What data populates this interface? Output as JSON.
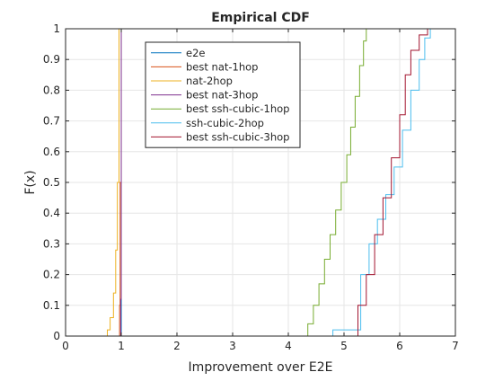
{
  "chart_data": {
    "type": "line",
    "title": "Empirical CDF",
    "xlabel": "Improvement over E2E",
    "ylabel": "F(x)",
    "xlim": [
      0,
      7
    ],
    "ylim": [
      0,
      1
    ],
    "xticks": [
      "0",
      "1",
      "2",
      "3",
      "4",
      "5",
      "6",
      "7"
    ],
    "yticks": [
      "0",
      "0.1",
      "0.2",
      "0.3",
      "0.4",
      "0.5",
      "0.6",
      "0.7",
      "0.8",
      "0.9",
      "1"
    ],
    "grid": true,
    "legend": "top-left-inside",
    "series": [
      {
        "name": "e2e",
        "color": "#0072bd",
        "x": [
          -0.1,
          1.0,
          1.0,
          7.1
        ],
        "y": [
          0,
          0,
          1,
          1
        ]
      },
      {
        "name": "best nat-1hop",
        "color": "#d95319",
        "x": [
          -0.1,
          0.97,
          0.97,
          0.98,
          0.98,
          1.0,
          1.0,
          7.1
        ],
        "y": [
          0,
          0,
          0.1,
          0.1,
          0.5,
          0.5,
          1,
          1
        ]
      },
      {
        "name": "nat-2hop",
        "color": "#edb120",
        "x": [
          -0.1,
          0.75,
          0.75,
          0.8,
          0.8,
          0.86,
          0.86,
          0.9,
          0.9,
          0.93,
          0.93,
          0.96,
          0.96,
          7.1
        ],
        "y": [
          0,
          0,
          0.02,
          0.02,
          0.06,
          0.06,
          0.14,
          0.14,
          0.28,
          0.28,
          0.5,
          0.5,
          1,
          1
        ]
      },
      {
        "name": "best nat-3hop",
        "color": "#7e2f8e",
        "x": [
          -0.1,
          0.99,
          0.99,
          1.0,
          1.0,
          7.1
        ],
        "y": [
          0,
          0,
          0.12,
          0.12,
          1,
          1
        ]
      },
      {
        "name": "best ssh-cubic-1hop",
        "color": "#77ac30",
        "x": [
          -0.1,
          4.35,
          4.35,
          4.45,
          4.45,
          4.55,
          4.55,
          4.65,
          4.65,
          4.75,
          4.75,
          4.85,
          4.85,
          4.95,
          4.95,
          5.05,
          5.05,
          5.12,
          5.12,
          5.2,
          5.2,
          5.28,
          5.28,
          5.35,
          5.35,
          5.4,
          5.4,
          7.1
        ],
        "y": [
          0,
          0,
          0.04,
          0.04,
          0.1,
          0.1,
          0.17,
          0.17,
          0.25,
          0.25,
          0.33,
          0.33,
          0.41,
          0.41,
          0.5,
          0.5,
          0.59,
          0.59,
          0.68,
          0.68,
          0.78,
          0.78,
          0.88,
          0.88,
          0.96,
          0.96,
          1,
          1
        ]
      },
      {
        "name": "ssh-cubic-2hop",
        "color": "#4dbeee",
        "x": [
          -0.1,
          4.8,
          4.8,
          5.3,
          5.3,
          5.45,
          5.45,
          5.6,
          5.6,
          5.75,
          5.75,
          5.9,
          5.9,
          6.05,
          6.05,
          6.2,
          6.2,
          6.35,
          6.35,
          6.45,
          6.45,
          6.55,
          6.55,
          7.1
        ],
        "y": [
          0,
          0,
          0.02,
          0.02,
          0.2,
          0.2,
          0.3,
          0.3,
          0.38,
          0.38,
          0.46,
          0.46,
          0.55,
          0.55,
          0.67,
          0.67,
          0.8,
          0.8,
          0.9,
          0.9,
          0.97,
          0.97,
          1,
          1
        ]
      },
      {
        "name": "best ssh-cubic-3hop",
        "color": "#a2142f",
        "x": [
          -0.1,
          5.25,
          5.25,
          5.4,
          5.4,
          5.55,
          5.55,
          5.7,
          5.7,
          5.85,
          5.85,
          6.0,
          6.0,
          6.1,
          6.1,
          6.2,
          6.2,
          6.35,
          6.35,
          6.5,
          6.5,
          6.65,
          6.65,
          7.1
        ],
        "y": [
          0,
          0,
          0.1,
          0.1,
          0.2,
          0.2,
          0.33,
          0.33,
          0.45,
          0.45,
          0.58,
          0.58,
          0.72,
          0.72,
          0.85,
          0.85,
          0.93,
          0.93,
          0.98,
          0.98,
          1,
          1,
          1,
          1
        ]
      }
    ]
  }
}
